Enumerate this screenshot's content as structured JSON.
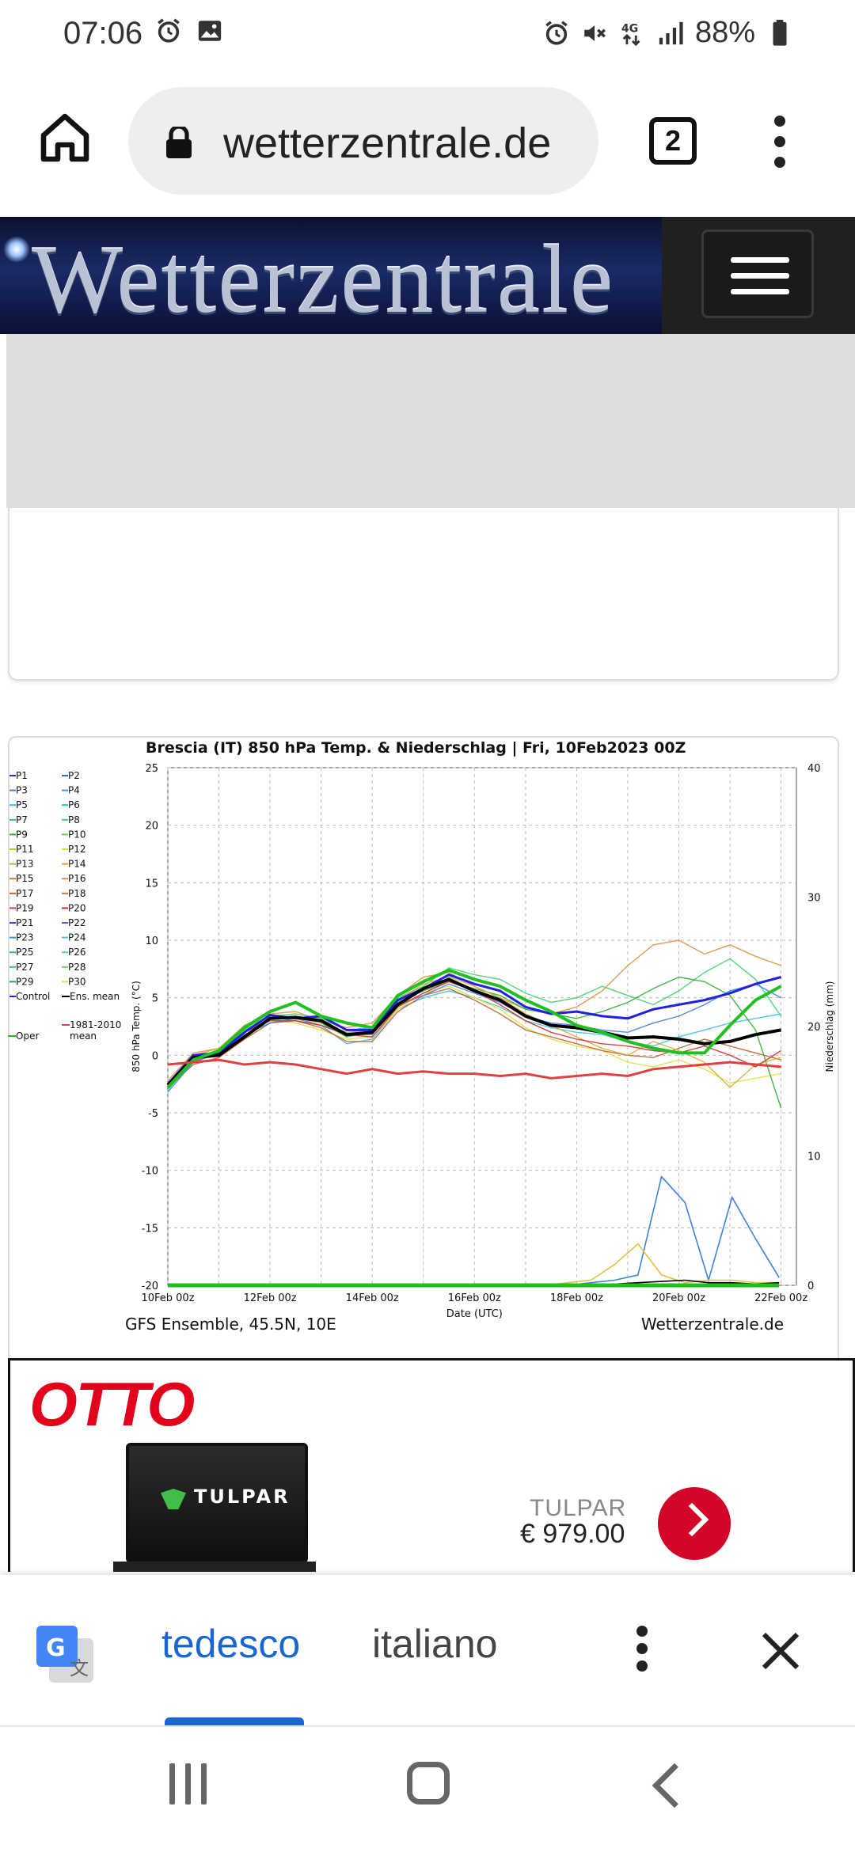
{
  "status_bar": {
    "time": "07:06",
    "battery": "88%",
    "network": "4G",
    "left_icons": [
      "alarm-icon",
      "image-icon"
    ],
    "right_icons": [
      "alarm-icon",
      "mute-icon",
      "data-4g-icon",
      "signal-icon",
      "battery-icon"
    ]
  },
  "browser": {
    "url": "wetterzentrale.de",
    "tab_count": "2",
    "icons": [
      "home-icon",
      "lock-icon",
      "more-vert-icon"
    ]
  },
  "site": {
    "logo_text": "Wetterzentrale",
    "menu_icon": "hamburger-menu-icon"
  },
  "chart": {
    "title": "Brescia  (IT)  850 hPa Temp. & Niederschlag | Fri, 10Feb2023 00Z",
    "footer_left": "GFS Ensemble, 45.5N, 10E",
    "footer_right": "Wetterzentrale.de"
  },
  "chart_data": {
    "type": "line",
    "title": "Brescia  (IT)  850 hPa Temp. & Niederschlag | Fri, 10Feb2023 00Z",
    "xlabel": "Date (UTC)",
    "ylabel": "850 hPa Temp. (°C)",
    "y2label": "Niederschlag (mm)",
    "x_ticks": [
      "10Feb 00z",
      "12Feb 00z",
      "14Feb 00z",
      "16Feb 00z",
      "18Feb 00z",
      "20Feb 00z",
      "22Feb 00z"
    ],
    "y_ticks": [
      "25",
      "20",
      "15",
      "10",
      "5",
      "0",
      "-5",
      "-10",
      "-15",
      "-20"
    ],
    "y2_ticks": [
      "40",
      "30",
      "20",
      "10",
      "0"
    ],
    "ylim": [
      -20,
      25
    ],
    "y2lim": [
      0,
      40
    ],
    "grid": true,
    "legend": {
      "position": "left",
      "entries": [
        "P1",
        "P2",
        "P3",
        "P4",
        "P5",
        "P6",
        "P7",
        "P8",
        "P9",
        "P10",
        "P11",
        "P12",
        "P13",
        "P14",
        "P15",
        "P16",
        "P17",
        "P18",
        "P19",
        "P20",
        "P21",
        "P22",
        "P23",
        "P24",
        "P25",
        "P26",
        "P27",
        "P28",
        "P29",
        "P30",
        "Control",
        "Ens. mean",
        "Oper",
        "1981-2010 mean"
      ],
      "colors": [
        "#3030c0",
        "#3070d0",
        "#4080e0",
        "#30a0e0",
        "#40c0e0",
        "#30c0c0",
        "#30c090",
        "#40d070",
        "#30b030",
        "#60d040",
        "#c0c020",
        "#e0e040",
        "#d0b030",
        "#e0a030",
        "#d08030",
        "#e09040",
        "#c06030",
        "#d07050",
        "#c04040",
        "#d03030",
        "#3050c0",
        "#6060d0",
        "#4090d0",
        "#50c0d0",
        "#40b0a0",
        "#50d0b0",
        "#40c060",
        "#70d060",
        "#30a050",
        "#e0e060",
        "#2020e0",
        "#000000",
        "#20c020",
        "#e04040"
      ]
    },
    "x_days": [
      0,
      0.5,
      1,
      1.5,
      2,
      2.5,
      3,
      3.5,
      4,
      4.5,
      5,
      5.5,
      6,
      6.5,
      7,
      7.5,
      8,
      8.5,
      9,
      9.5,
      10,
      10.5,
      11,
      11.5,
      12
    ],
    "series": [
      {
        "name": "Control",
        "color": "#2020e0",
        "width": 3,
        "values": [
          -2.5,
          0,
          0.2,
          2.0,
          3.5,
          3.2,
          3.4,
          2.2,
          2.2,
          4.8,
          5.8,
          7.0,
          6.2,
          5.6,
          4.2,
          3.6,
          3.8,
          3.4,
          3.2,
          4.0,
          4.4,
          4.8,
          5.4,
          6.2,
          6.8
        ]
      },
      {
        "name": "Ens. mean",
        "color": "#000000",
        "width": 4,
        "values": [
          -2.6,
          -0.2,
          0.0,
          1.6,
          3.2,
          3.3,
          3.0,
          1.8,
          2.0,
          4.4,
          5.8,
          6.6,
          5.6,
          4.8,
          3.4,
          2.6,
          2.4,
          2.0,
          1.5,
          1.6,
          1.4,
          1.0,
          1.2,
          1.8,
          2.2
        ]
      },
      {
        "name": "Oper",
        "color": "#20c020",
        "width": 4,
        "values": [
          -2.8,
          -0.4,
          0.4,
          2.4,
          3.8,
          4.6,
          3.4,
          2.8,
          2.4,
          5.2,
          6.4,
          7.4,
          6.6,
          6.0,
          4.8,
          3.8,
          2.6,
          2.0,
          1.2,
          0.6,
          0.2,
          0.2,
          2.6,
          4.8,
          6.0
        ]
      },
      {
        "name": "1981-2010 mean",
        "color": "#e04040",
        "width": 3,
        "values": [
          -0.8,
          -0.6,
          -0.4,
          -0.8,
          -0.6,
          -0.8,
          -1.2,
          -1.6,
          -1.2,
          -1.6,
          -1.4,
          -1.6,
          -1.6,
          -1.8,
          -1.6,
          -2.0,
          -1.8,
          -1.6,
          -1.8,
          -1.2,
          -1.0,
          -0.8,
          -0.6,
          -0.8,
          -1.0
        ]
      }
    ],
    "members": [
      {
        "color": "#40c0e0",
        "values": [
          -3.0,
          -0.5,
          0.5,
          2.2,
          3.0,
          3.0,
          2.6,
          1.0,
          1.4,
          4.0,
          5.0,
          5.6,
          5.0,
          4.2,
          3.0,
          2.4,
          2.0,
          1.8,
          1.2,
          0.8,
          1.6,
          2.2,
          2.8,
          3.2,
          3.6
        ]
      },
      {
        "color": "#e09040",
        "values": [
          -2.2,
          0.2,
          0.6,
          2.6,
          3.6,
          3.8,
          3.0,
          2.4,
          2.8,
          5.2,
          6.8,
          7.2,
          6.0,
          5.0,
          4.0,
          3.6,
          4.2,
          5.6,
          7.8,
          9.6,
          10.0,
          8.8,
          9.6,
          8.6,
          7.8
        ]
      },
      {
        "color": "#e0e040",
        "values": [
          -2.6,
          -0.4,
          0.0,
          1.8,
          3.0,
          2.8,
          2.2,
          1.4,
          1.6,
          4.0,
          5.4,
          6.0,
          5.0,
          4.0,
          2.4,
          1.4,
          0.8,
          0.4,
          -0.6,
          -1.0,
          -0.4,
          -1.2,
          -2.4,
          -2.0,
          -1.6
        ]
      },
      {
        "color": "#40d070",
        "values": [
          -2.4,
          -0.2,
          0.4,
          2.2,
          3.4,
          3.6,
          3.2,
          2.2,
          2.4,
          5.0,
          6.0,
          7.6,
          7.0,
          6.6,
          5.4,
          4.6,
          5.0,
          6.0,
          5.2,
          4.4,
          5.6,
          7.2,
          8.4,
          6.6,
          3.4
        ]
      },
      {
        "color": "#c06030",
        "values": [
          -2.8,
          -0.8,
          -0.2,
          1.4,
          2.8,
          3.0,
          2.4,
          1.2,
          1.2,
          3.8,
          5.2,
          5.8,
          4.8,
          3.6,
          2.2,
          1.6,
          1.0,
          0.4,
          0.0,
          -0.2,
          0.6,
          1.4,
          0.8,
          0.2,
          -0.4
        ]
      },
      {
        "color": "#30b030",
        "values": [
          -2.6,
          -0.6,
          0.2,
          2.0,
          3.2,
          3.4,
          2.8,
          1.6,
          2.0,
          4.6,
          5.6,
          6.4,
          5.8,
          5.2,
          4.0,
          3.6,
          3.2,
          3.8,
          4.6,
          5.8,
          6.8,
          6.4,
          5.2,
          2.2,
          -4.6
        ]
      },
      {
        "color": "#4080e0",
        "values": [
          -3.2,
          -0.6,
          0.2,
          1.8,
          2.8,
          3.2,
          2.6,
          1.8,
          1.8,
          4.4,
          5.2,
          6.2,
          5.4,
          4.6,
          3.4,
          2.8,
          2.6,
          2.2,
          2.0,
          2.8,
          3.4,
          4.4,
          5.6,
          6.2,
          5.0
        ]
      },
      {
        "color": "#d0b030",
        "values": [
          -2.4,
          0.0,
          0.6,
          2.4,
          3.4,
          3.2,
          2.8,
          2.0,
          2.2,
          4.8,
          6.2,
          6.8,
          6.0,
          5.0,
          3.6,
          2.6,
          1.6,
          0.6,
          0.0,
          1.2,
          0.4,
          -0.6,
          -2.8,
          -0.8,
          -0.2
        ]
      },
      {
        "color": "#d03030",
        "values": [
          -2.8,
          -0.2,
          0.4,
          2.0,
          3.0,
          3.0,
          2.6,
          1.8,
          1.6,
          4.2,
          5.4,
          6.4,
          5.6,
          4.4,
          3.0,
          2.0,
          1.4,
          1.0,
          0.8,
          0.4,
          0.2,
          0.8,
          0.0,
          -1.0,
          0.4
        ]
      }
    ],
    "precip": [
      {
        "color": "#4080e0",
        "values": [
          0,
          0,
          0,
          0,
          0,
          0,
          0,
          0,
          0,
          0,
          0,
          0,
          0,
          0,
          0,
          0,
          0,
          0,
          0.2,
          0.4,
          0.8,
          8.4,
          6.4,
          0.4,
          6.8,
          3.6,
          0.6
        ]
      },
      {
        "color": "#e0c040",
        "values": [
          0,
          0,
          0,
          0,
          0,
          0,
          0,
          0,
          0,
          0,
          0,
          0,
          0,
          0,
          0,
          0,
          0,
          0.2,
          0.4,
          1.6,
          3.2,
          0.8,
          0.2,
          0.4,
          0.4,
          0.2,
          0.2
        ]
      },
      {
        "color": "#000000",
        "values": [
          0,
          0,
          0,
          0,
          0,
          0,
          0,
          0,
          0,
          0,
          0,
          0,
          0,
          0,
          0,
          0,
          0,
          0,
          0,
          0.1,
          0.2,
          0.3,
          0.4,
          0.2,
          0.2,
          0.1,
          0.2
        ]
      },
      {
        "color": "#20c020",
        "values": [
          0,
          0,
          0,
          0,
          0,
          0,
          0,
          0,
          0,
          0,
          0,
          0,
          0,
          0,
          0,
          0,
          0,
          0,
          0,
          0,
          0,
          0,
          0,
          0,
          0,
          0,
          0
        ]
      }
    ]
  },
  "ad": {
    "brand": "OTTO",
    "product_brand": "TULPAR",
    "price": "€ 979.00",
    "laptop_logo": "TULPAR"
  },
  "translate_bar": {
    "tab_source": "tedesco",
    "tab_target": "italiano",
    "icons": [
      "google-translate-icon",
      "more-vert-icon",
      "close-icon"
    ]
  },
  "nav_bar": {
    "icons": [
      "recents-icon",
      "home-icon",
      "back-icon"
    ]
  }
}
